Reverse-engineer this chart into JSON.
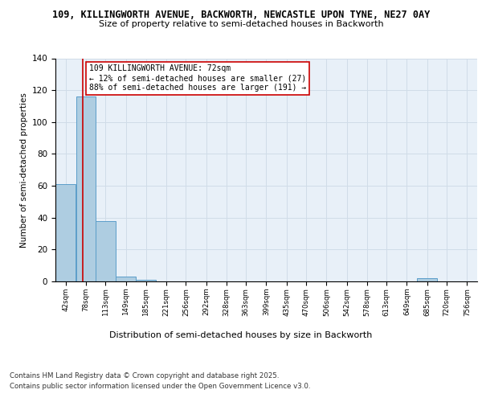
{
  "title_line1": "109, KILLINGWORTH AVENUE, BACKWORTH, NEWCASTLE UPON TYNE, NE27 0AY",
  "title_line2": "Size of property relative to semi-detached houses in Backworth",
  "xlabel": "Distribution of semi-detached houses by size in Backworth",
  "ylabel": "Number of semi-detached properties",
  "bins": [
    42,
    78,
    113,
    149,
    185,
    221,
    256,
    292,
    328,
    363,
    399,
    435,
    470,
    506,
    542,
    578,
    613,
    649,
    685,
    720,
    756
  ],
  "counts": [
    61,
    116,
    38,
    3,
    1,
    0,
    0,
    0,
    0,
    0,
    0,
    0,
    0,
    0,
    0,
    0,
    0,
    0,
    2,
    0,
    0
  ],
  "bar_color": "#aecde1",
  "bar_edge_color": "#5b9ec9",
  "property_size": 72,
  "property_label": "109 KILLINGWORTH AVENUE: 72sqm",
  "smaller_pct": "12%",
  "smaller_n": 27,
  "larger_pct": "88%",
  "larger_n": 191,
  "annotation_box_color": "#ffffff",
  "annotation_box_edge": "#cc0000",
  "vline_color": "#cc0000",
  "ylim": [
    0,
    140
  ],
  "yticks": [
    0,
    20,
    40,
    60,
    80,
    100,
    120,
    140
  ],
  "grid_color": "#d0dce8",
  "bg_color": "#e8f0f8",
  "footer_line1": "Contains HM Land Registry data © Crown copyright and database right 2025.",
  "footer_line2": "Contains public sector information licensed under the Open Government Licence v3.0."
}
